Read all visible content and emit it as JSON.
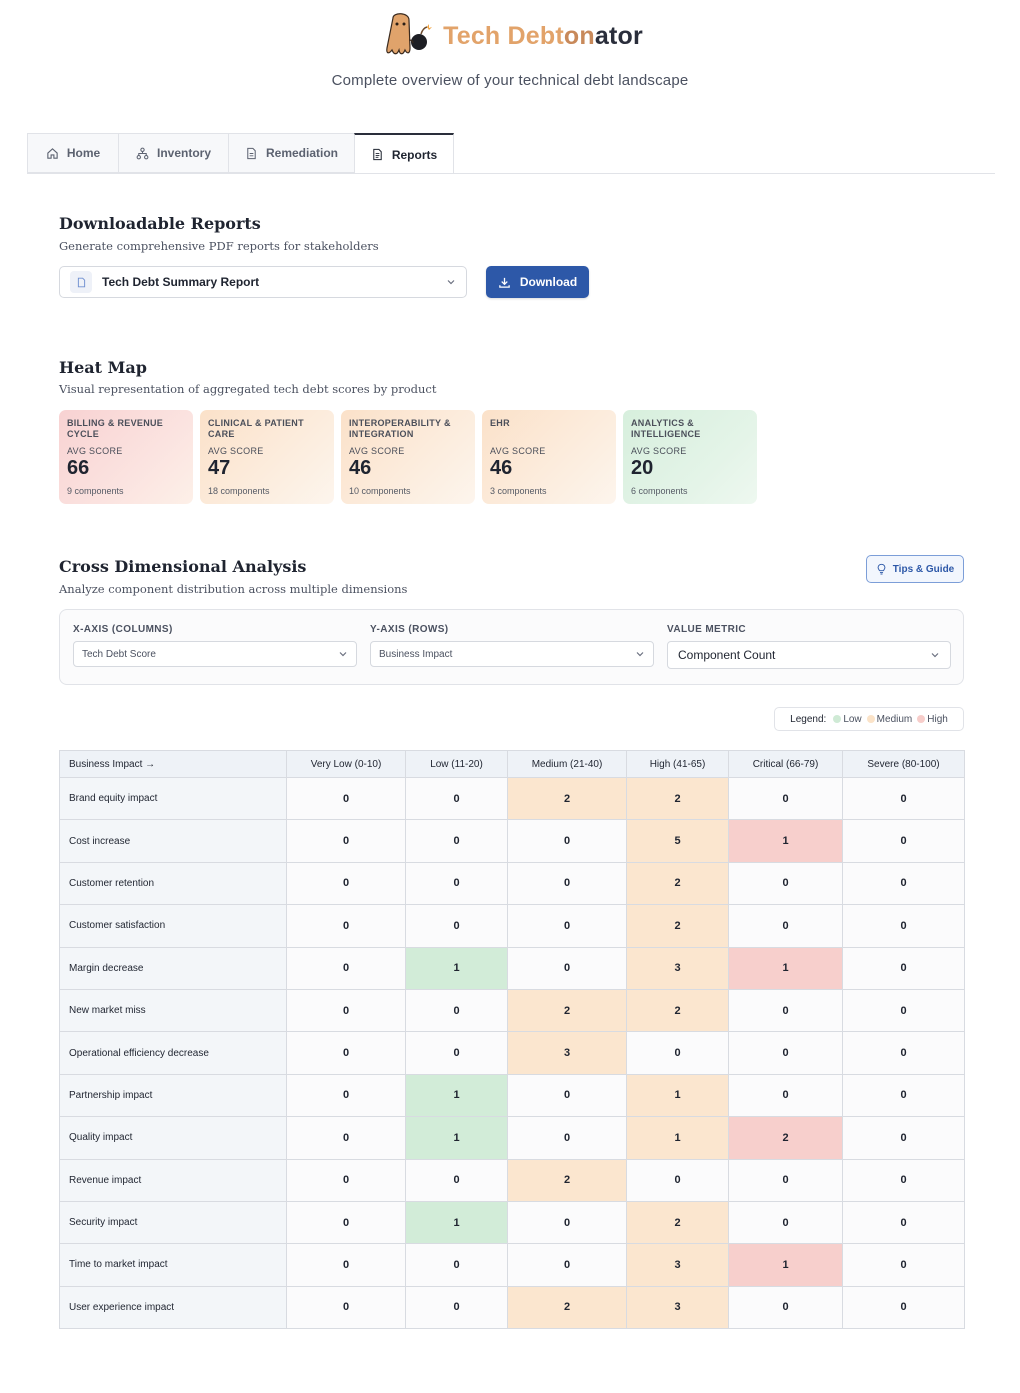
{
  "brand": {
    "title_part1": "Tech Debt",
    "title_part2": "on",
    "title_part3": "ator",
    "subtitle": "Complete overview of your technical debt landscape"
  },
  "tabs": [
    {
      "label": "Home",
      "icon": "home-icon"
    },
    {
      "label": "Inventory",
      "icon": "network-icon"
    },
    {
      "label": "Remediation",
      "icon": "document-icon"
    },
    {
      "label": "Reports",
      "icon": "report-icon",
      "active": true
    }
  ],
  "reports": {
    "title": "Downloadable Reports",
    "subtitle": "Generate comprehensive PDF reports for stakeholders",
    "selected_report": "Tech Debt Summary Report",
    "download_label": "Download"
  },
  "heatmap": {
    "title": "Heat Map",
    "subtitle": "Visual representation of aggregated tech debt scores by product",
    "avg_label": "AVG SCORE",
    "cards": [
      {
        "name": "BILLING & REVENUE CYCLE",
        "score": "66",
        "components": "9 components",
        "level": "high"
      },
      {
        "name": "CLINICAL & PATIENT CARE",
        "score": "47",
        "components": "18 components",
        "level": "medium"
      },
      {
        "name": "INTEROPERABILITY & INTEGRATION",
        "score": "46",
        "components": "10 components",
        "level": "medium"
      },
      {
        "name": "EHR",
        "score": "46",
        "components": "3 components",
        "level": "medium"
      },
      {
        "name": "ANALYTICS & INTELLIGENCE",
        "score": "20",
        "components": "6 components",
        "level": "low"
      }
    ]
  },
  "cross": {
    "title": "Cross Dimensional Analysis",
    "subtitle": "Analyze component distribution across multiple dimensions",
    "tips_label": "Tips & Guide",
    "x_axis_label": "X-AXIS (COLUMNS)",
    "x_axis_value": "Tech Debt Score",
    "y_axis_label": "Y-AXIS (ROWS)",
    "y_axis_value": "Business Impact",
    "metric_label": "VALUE METRIC",
    "metric_value": "Component Count",
    "legend": {
      "title": "Legend:",
      "low": "Low",
      "medium": "Medium",
      "high": "High"
    },
    "colors": {
      "low": "#d2ecd8",
      "medium": "#fbe6cf",
      "high": "#f7cfcc"
    }
  },
  "matrix": {
    "corner": "Business Impact →",
    "columns": [
      "Very Low (0-10)",
      "Low (11-20)",
      "Medium (21-40)",
      "High (41-65)",
      "Critical (66-79)",
      "Severe (80-100)"
    ],
    "rows": [
      {
        "label": "Brand equity impact",
        "values": [
          0,
          0,
          2,
          2,
          0,
          0
        ]
      },
      {
        "label": "Cost increase",
        "values": [
          0,
          0,
          0,
          5,
          1,
          0
        ]
      },
      {
        "label": "Customer retention",
        "values": [
          0,
          0,
          0,
          2,
          0,
          0
        ]
      },
      {
        "label": "Customer satisfaction",
        "values": [
          0,
          0,
          0,
          2,
          0,
          0
        ]
      },
      {
        "label": "Margin decrease",
        "values": [
          0,
          1,
          0,
          3,
          1,
          0
        ]
      },
      {
        "label": "New market miss",
        "values": [
          0,
          0,
          2,
          2,
          0,
          0
        ]
      },
      {
        "label": "Operational efficiency decrease",
        "values": [
          0,
          0,
          3,
          0,
          0,
          0
        ]
      },
      {
        "label": "Partnership impact",
        "values": [
          0,
          1,
          0,
          1,
          0,
          0
        ]
      },
      {
        "label": "Quality impact",
        "values": [
          0,
          1,
          0,
          1,
          2,
          0
        ]
      },
      {
        "label": "Revenue impact",
        "values": [
          0,
          0,
          2,
          0,
          0,
          0
        ]
      },
      {
        "label": "Security impact",
        "values": [
          0,
          1,
          0,
          2,
          0,
          0
        ]
      },
      {
        "label": "Time to market impact",
        "values": [
          0,
          0,
          0,
          3,
          1,
          0
        ]
      },
      {
        "label": "User experience impact",
        "values": [
          0,
          0,
          2,
          3,
          0,
          0
        ]
      }
    ]
  }
}
